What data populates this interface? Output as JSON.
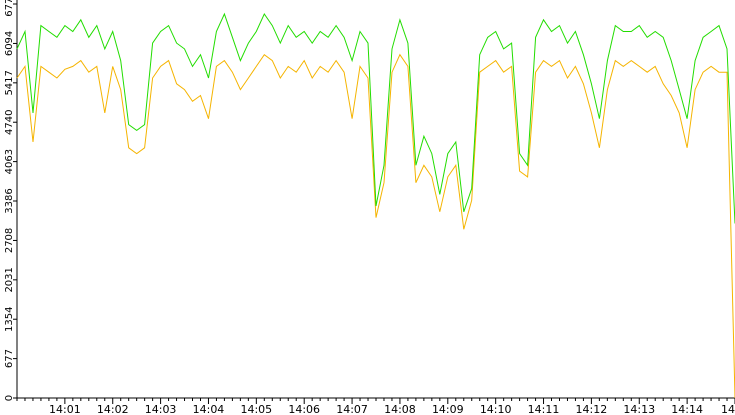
{
  "chart_data": {
    "type": "line",
    "categories": [
      null,
      null,
      null,
      null,
      null,
      null,
      "14:01",
      null,
      null,
      null,
      null,
      null,
      "14:02",
      null,
      null,
      null,
      null,
      null,
      "14:03",
      null,
      null,
      null,
      null,
      null,
      "14:04",
      null,
      null,
      null,
      null,
      null,
      "14:05",
      null,
      null,
      null,
      null,
      null,
      "14:06",
      null,
      null,
      null,
      null,
      null,
      "14:07",
      null,
      null,
      null,
      null,
      null,
      "14:08",
      null,
      null,
      null,
      null,
      null,
      "14:09",
      null,
      null,
      null,
      null,
      null,
      "14:10",
      null,
      null,
      null,
      null,
      null,
      "14:11",
      null,
      null,
      null,
      null,
      null,
      "14:12",
      null,
      null,
      null,
      null,
      null,
      "14:13",
      null,
      null,
      null,
      null,
      null,
      "14:14",
      null,
      null,
      null,
      null,
      null,
      "14"
    ],
    "series": [
      {
        "color": "#22dd00",
        "values": [
          6000,
          6300,
          4900,
          6400,
          6300,
          6200,
          6400,
          6300,
          6500,
          6200,
          6400,
          6000,
          6300,
          5800,
          4700,
          4600,
          4700,
          6100,
          6300,
          6400,
          6100,
          6000,
          5700,
          5900,
          5500,
          6300,
          6600,
          6200,
          5800,
          6100,
          6300,
          6600,
          6400,
          6100,
          6400,
          6200,
          6300,
          6100,
          6300,
          6200,
          6400,
          6200,
          5800,
          6300,
          6100,
          3300,
          4000,
          6000,
          6500,
          6100,
          4000,
          4500,
          4200,
          3500,
          4200,
          4400,
          3200,
          3600,
          5900,
          6200,
          6300,
          6000,
          6100,
          4200,
          4000,
          6200,
          6500,
          6300,
          6400,
          6100,
          6300,
          5900,
          5400,
          4800,
          5800,
          6400,
          6300,
          6300,
          6400,
          6200,
          6300,
          6200,
          5800,
          5300,
          4800,
          5800,
          6200,
          6300,
          6400,
          6000,
          3000
        ]
      },
      {
        "color": "#f5b400",
        "values": [
          5500,
          5700,
          4400,
          5700,
          5600,
          5500,
          5650,
          5700,
          5800,
          5600,
          5700,
          4900,
          5700,
          5300,
          4300,
          4200,
          4300,
          5500,
          5700,
          5800,
          5400,
          5300,
          5100,
          5200,
          4800,
          5700,
          5800,
          5600,
          5300,
          5500,
          5700,
          5900,
          5800,
          5500,
          5700,
          5600,
          5800,
          5500,
          5700,
          5600,
          5800,
          5600,
          4800,
          5700,
          5500,
          3100,
          3700,
          5600,
          5900,
          5700,
          3700,
          4000,
          3800,
          3200,
          3800,
          4000,
          2900,
          3400,
          5600,
          5700,
          5800,
          5600,
          5700,
          3900,
          3800,
          5600,
          5800,
          5700,
          5800,
          5500,
          5700,
          5400,
          4900,
          4300,
          5300,
          5800,
          5700,
          5800,
          5700,
          5600,
          5700,
          5400,
          5200,
          4900,
          4300,
          5300,
          5600,
          5700,
          5600,
          5600,
          0
        ]
      }
    ],
    "ylim": [
      0,
      6772
    ],
    "yticks": [
      0,
      677,
      1354,
      2031,
      2708,
      3386,
      4063,
      4740,
      5417,
      6094,
      6772
    ]
  }
}
